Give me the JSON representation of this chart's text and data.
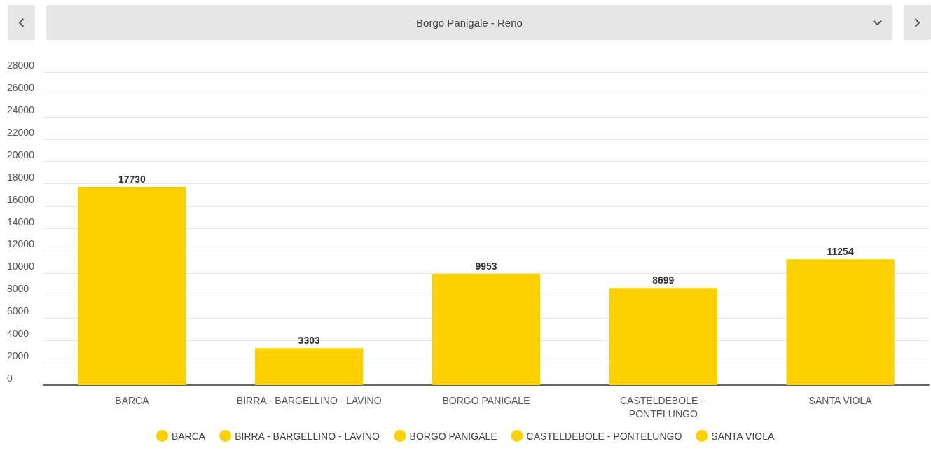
{
  "chart_data": {
    "type": "bar",
    "title": "Borgo Panigale - Reno",
    "categories": [
      "BARCA",
      "BIRRA - BARGELLINO - LAVINO",
      "BORGO PANIGALE",
      "CASTELDEBOLE - PONTELUNGO",
      "SANTA VIOLA"
    ],
    "series": [
      {
        "name": "BARCA",
        "color": "#fdd000",
        "values": [
          17730,
          null,
          null,
          null,
          null
        ]
      },
      {
        "name": "BIRRA - BARGELLINO - LAVINO",
        "color": "#fdd000",
        "values": [
          null,
          3303,
          null,
          null,
          null
        ]
      },
      {
        "name": "BORGO PANIGALE",
        "color": "#fdd000",
        "values": [
          null,
          null,
          9953,
          null,
          null
        ]
      },
      {
        "name": "CASTELDEBOLE - PONTELUNGO",
        "color": "#fdd000",
        "values": [
          null,
          null,
          null,
          8699,
          null
        ]
      },
      {
        "name": "SANTA VIOLA",
        "color": "#fdd000",
        "values": [
          null,
          null,
          null,
          null,
          11254
        ]
      }
    ],
    "ylim": [
      0,
      28000
    ],
    "yticks": [
      0,
      2000,
      4000,
      6000,
      8000,
      10000,
      12000,
      14000,
      16000,
      18000,
      20000,
      22000,
      24000,
      26000,
      28000
    ],
    "grid": "y",
    "legend": "bottom",
    "data_labels": true
  }
}
